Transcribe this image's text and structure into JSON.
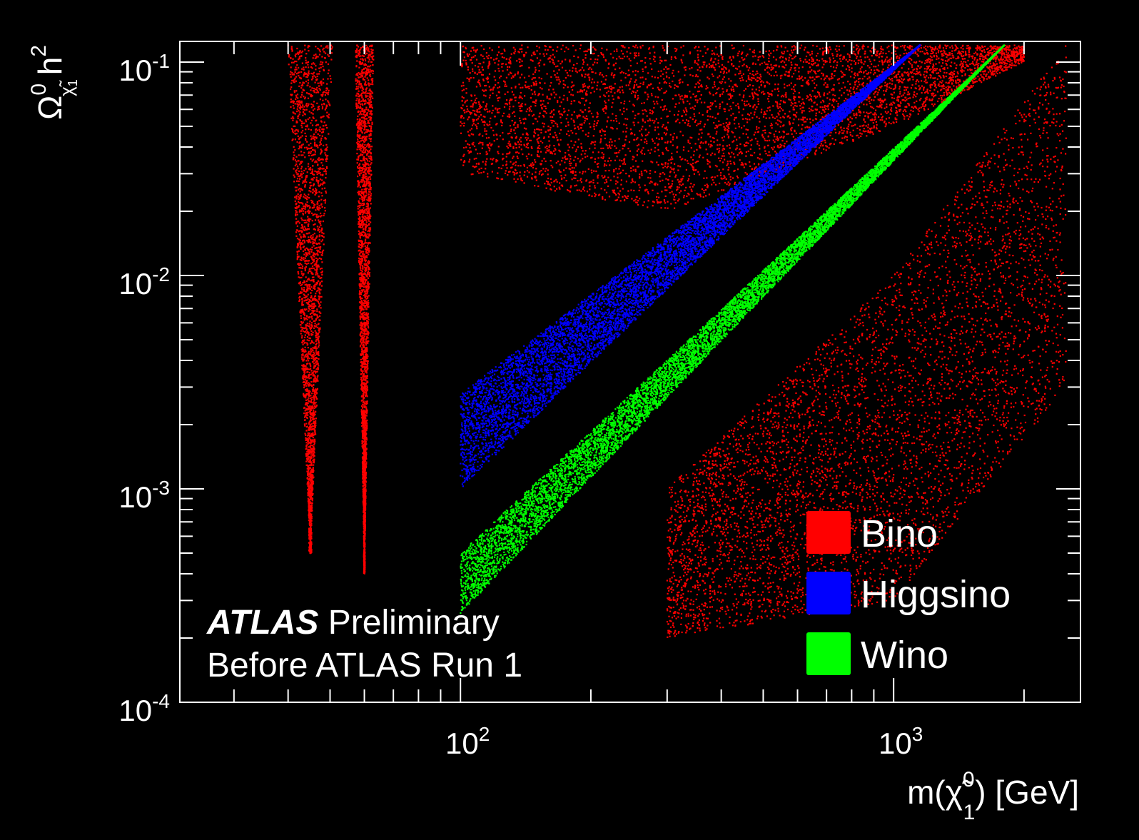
{
  "chart_data": {
    "type": "scatter",
    "background_color": "#000000",
    "axis_color": "#ffffff",
    "x_axis": {
      "scale": "log",
      "range": [
        22.5,
        2700
      ],
      "label_base": "m(",
      "label_symbol": "χ̃",
      "label_sup": "0",
      "label_sub": "1",
      "label_unit": ") [GeV]",
      "major_ticks": [
        {
          "value": 100,
          "base": "10",
          "exp": "2"
        },
        {
          "value": 1000,
          "base": "10",
          "exp": "3"
        }
      ]
    },
    "y_axis": {
      "scale": "log",
      "range": [
        0.0001,
        0.125
      ],
      "label_symbol": "Ω",
      "label_sup": "0",
      "label_sub_symbol": "χ̃",
      "label_sub_index": "1",
      "label_rest": "h",
      "label_rest_sup": "2",
      "major_ticks": [
        {
          "value": 0.1,
          "base": "10",
          "exp": "-1"
        },
        {
          "value": 0.01,
          "base": "10",
          "exp": "-2"
        },
        {
          "value": 0.001,
          "base": "10",
          "exp": "-3"
        },
        {
          "value": 0.0001,
          "base": "10",
          "exp": "-4"
        }
      ]
    },
    "series": [
      {
        "name": "Bino",
        "color": "#ff0000",
        "regions": [
          {
            "shape": "funnel",
            "x_center": 45,
            "x_half_width_top": 0.12,
            "y_top": 0.12,
            "y_bottom": 0.0005
          },
          {
            "shape": "funnel",
            "x_center": 60,
            "x_half_width_top": 0.05,
            "y_top": 0.12,
            "y_bottom": 0.0004
          },
          {
            "shape": "cloud",
            "x_range": [
              100,
              2000
            ],
            "y_top": 0.12,
            "y_bottom_at_x": [
              [
                100,
                0.03
              ],
              [
                300,
                0.02
              ],
              [
                1000,
                0.05
              ],
              [
                2000,
                0.1
              ]
            ]
          },
          {
            "shape": "cloud",
            "x_range": [
              300,
              2500
            ],
            "y_top_at_x": [
              [
                300,
                0.001
              ],
              [
                1000,
                0.01
              ],
              [
                2500,
                0.12
              ]
            ],
            "y_bottom_at_x": [
              [
                300,
                0.0002
              ],
              [
                1000,
                0.0003
              ],
              [
                2500,
                0.003
              ]
            ]
          }
        ]
      },
      {
        "name": "Higgsino",
        "color": "#0000ff",
        "band": {
          "x_range": [
            100,
            1150
          ],
          "y_upper": [
            [
              100,
              0.0028
            ],
            [
              1150,
              0.12
            ]
          ],
          "y_lower": [
            [
              100,
              0.001
            ],
            [
              1150,
              0.12
            ]
          ]
        }
      },
      {
        "name": "Wino",
        "color": "#00ff00",
        "band": {
          "x_range": [
            100,
            1800
          ],
          "y_upper": [
            [
              100,
              0.0005
            ],
            [
              1800,
              0.12
            ]
          ],
          "y_lower": [
            [
              100,
              0.00026
            ],
            [
              1800,
              0.12
            ]
          ]
        }
      }
    ],
    "legend": {
      "placement": "bottom-right"
    },
    "annotation": {
      "bold": "ATLAS",
      "rest": " Preliminary",
      "line2": "Before ATLAS Run 1"
    }
  }
}
